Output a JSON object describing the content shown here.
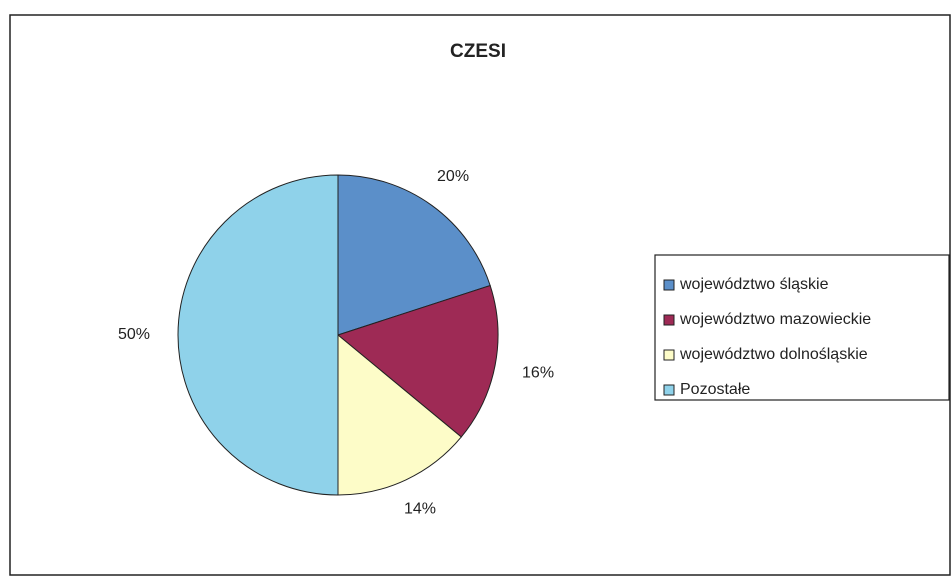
{
  "chart_data": {
    "type": "pie",
    "title": "CZESI",
    "categories": [
      "województwo śląskie",
      "województwo mazowieckie",
      "województwo dolnośląskie",
      "Pozostałe"
    ],
    "values": [
      20,
      16,
      14,
      50
    ],
    "value_labels": [
      "20%",
      "16%",
      "14%",
      "50%"
    ],
    "colors": [
      "#5b8fc9",
      "#9e2a55",
      "#fdfcc8",
      "#8fd2ea"
    ]
  }
}
